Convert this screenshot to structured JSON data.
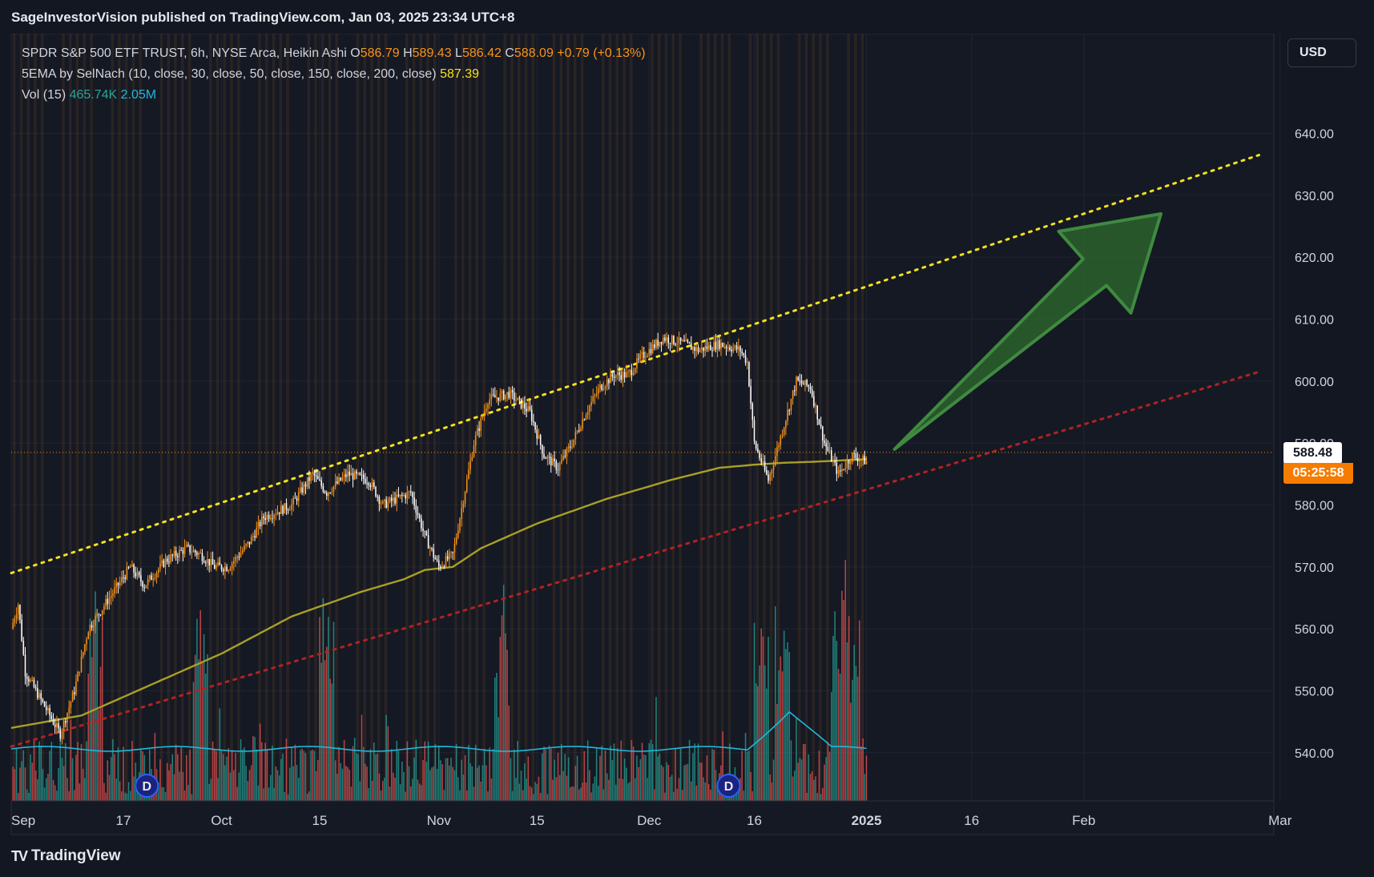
{
  "header": {
    "published": "SageInvestorVision published on TradingView.com, Jan 03, 2025 23:34 UTC+8"
  },
  "legend": {
    "symbol": "SPDR S&P 500 ETF TRUST, 6h, NYSE Arca, Heikin Ashi",
    "o_label": "O",
    "o_value": "586.79",
    "h_label": "H",
    "h_value": "589.43",
    "l_label": "L",
    "l_value": "586.42",
    "c_label": "C",
    "c_value": "588.09",
    "change": "+0.79 (+0.13%)",
    "ema_label": "5EMA by SelNach (10, close, 30, close, 50, close, 150, close, 200, close)",
    "ema_value": "587.39",
    "vol_label": "Vol (15)",
    "vol_value": "465.74K",
    "vol_ma": "2.05M"
  },
  "currency": "USD",
  "price_tag": {
    "price": "588.48",
    "countdown": "05:25:58"
  },
  "brand": {
    "logo": "TV",
    "name": "TradingView"
  },
  "colors": {
    "background": "#131722",
    "up": "#f7931a",
    "down": "#ffffff",
    "ema": "#a8a026",
    "upper_trend": "#f5e11d",
    "lower_trend": "#b22222",
    "arrow": "#2e6b2e",
    "vol_up": "#26a69a",
    "vol_down": "#ef5350",
    "vol_ma": "#22b8d8",
    "price_tag": "#f57c00"
  },
  "chart_data": {
    "type": "candlestick",
    "style": "Heikin Ashi",
    "interval": "6h",
    "y_axis": {
      "min": 535,
      "max": 655,
      "ticks": [
        "640.00",
        "630.00",
        "620.00",
        "610.00",
        "600.00",
        "590.00",
        "580.00",
        "570.00",
        "560.00",
        "550.00",
        "540.00"
      ]
    },
    "x_axis": {
      "range_days": [
        0,
        182
      ],
      "labels": [
        {
          "label": "Sep",
          "day": 0
        },
        {
          "label": "17",
          "day": 16
        },
        {
          "label": "Oct",
          "day": 30
        },
        {
          "label": "15",
          "day": 44
        },
        {
          "label": "Nov",
          "day": 61
        },
        {
          "label": "15",
          "day": 75
        },
        {
          "label": "Dec",
          "day": 91
        },
        {
          "label": "16",
          "day": 106
        },
        {
          "label": "2025",
          "day": 122
        },
        {
          "label": "16",
          "day": 137
        },
        {
          "label": "Feb",
          "day": 153
        },
        {
          "label": "Mar",
          "day": 181
        }
      ]
    },
    "price_path": [
      [
        0,
        560
      ],
      [
        1,
        564
      ],
      [
        2,
        553
      ],
      [
        5,
        547
      ],
      [
        7,
        543
      ],
      [
        9,
        550
      ],
      [
        11,
        560
      ],
      [
        14,
        565
      ],
      [
        17,
        570
      ],
      [
        19,
        567
      ],
      [
        22,
        571
      ],
      [
        25,
        573
      ],
      [
        27,
        572
      ],
      [
        29,
        570
      ],
      [
        31,
        570
      ],
      [
        34,
        574
      ],
      [
        36,
        578
      ],
      [
        40,
        580
      ],
      [
        43,
        585
      ],
      [
        45,
        582
      ],
      [
        48,
        585
      ],
      [
        51,
        584
      ],
      [
        53,
        580
      ],
      [
        55,
        581
      ],
      [
        57,
        582
      ],
      [
        59,
        575
      ],
      [
        61,
        570
      ],
      [
        63,
        572
      ],
      [
        66,
        590
      ],
      [
        68,
        597
      ],
      [
        71,
        598
      ],
      [
        74,
        595
      ],
      [
        76,
        588
      ],
      [
        78,
        586
      ],
      [
        80,
        590
      ],
      [
        82,
        595
      ],
      [
        84,
        599
      ],
      [
        86,
        601
      ],
      [
        88,
        601
      ],
      [
        90,
        604
      ],
      [
        93,
        607
      ],
      [
        96,
        606
      ],
      [
        98,
        605
      ],
      [
        101,
        606
      ],
      [
        104,
        605
      ],
      [
        105,
        603
      ],
      [
        106,
        590
      ],
      [
        108,
        584
      ],
      [
        110,
        592
      ],
      [
        112,
        600
      ],
      [
        114,
        599
      ],
      [
        116,
        590
      ],
      [
        118,
        585
      ],
      [
        120,
        588
      ],
      [
        122,
        587
      ]
    ],
    "ema": [
      [
        0,
        544
      ],
      [
        10,
        546
      ],
      [
        20,
        551
      ],
      [
        30,
        556
      ],
      [
        40,
        562
      ],
      [
        50,
        566
      ],
      [
        56,
        568
      ],
      [
        59,
        569.5
      ],
      [
        63,
        570
      ],
      [
        67,
        573
      ],
      [
        75,
        577
      ],
      [
        85,
        581
      ],
      [
        94,
        584
      ],
      [
        101,
        586
      ],
      [
        106,
        586.5
      ],
      [
        110,
        586.8
      ],
      [
        115,
        587
      ],
      [
        122,
        587.39
      ]
    ],
    "upper_trendline": {
      "from": [
        0,
        569
      ],
      "to": [
        178,
        636.5
      ]
    },
    "lower_trendline": {
      "from": [
        0,
        541
      ],
      "to": [
        178,
        601.5
      ]
    },
    "forecast_arrow": {
      "from": [
        126,
        589
      ],
      "to": [
        164,
        627
      ]
    },
    "last_price": 588.48,
    "last_day": 122,
    "volume_peak_days": [
      12,
      27,
      45,
      70,
      107,
      110,
      118,
      120
    ],
    "volume_ma_peak_day": 111
  }
}
